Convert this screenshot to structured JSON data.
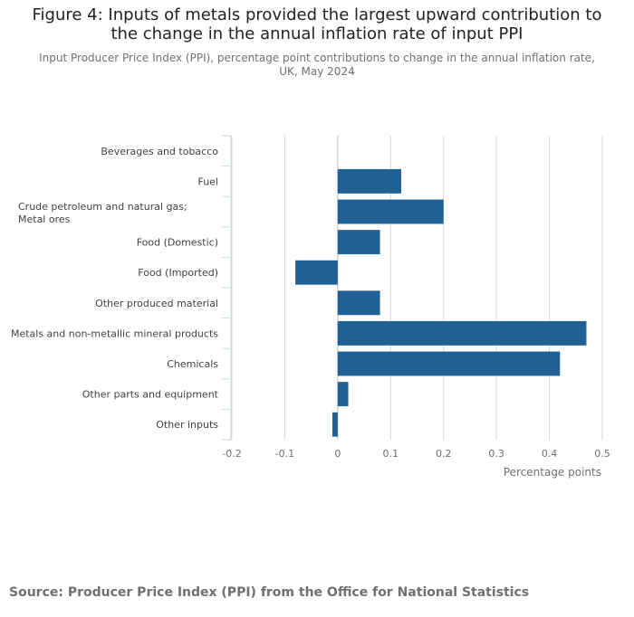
{
  "title": "Figure 4: Inputs of metals provided the largest upward contribution to the change in the annual inflation rate of input PPI",
  "subtitle": "Input Producer Price Index (PPI), percentage point contributions to change in the annual inflation rate, UK, May 2024",
  "source": "Source: Producer Price Index (PPI) from the Office for National Statistics",
  "colors": {
    "bar": "#206095",
    "grid": "#d9d9d9",
    "axis": "#ccd6e8"
  },
  "chart_data": {
    "type": "bar",
    "orientation": "horizontal",
    "categories": [
      "Beverages and tobacco",
      "Fuel",
      "Crude petroleum and natural gas; Metal ores",
      "Food (Domestic)",
      "Food (Imported)",
      "Other produced material",
      "Metals and non-metallic mineral products",
      "Chemicals",
      "Other parts and equipment",
      "Other inputs"
    ],
    "values": [
      0,
      0.12,
      0.2,
      0.08,
      -0.08,
      0.08,
      0.47,
      0.42,
      0.02,
      -0.01
    ],
    "xlabel": "Percentage points",
    "ylabel": "",
    "xlim": [
      -0.2,
      0.5
    ],
    "ticks": [
      -0.2,
      -0.1,
      0,
      0.1,
      0.2,
      0.3,
      0.4,
      0.5
    ],
    "tick_labels": [
      "-0.2",
      "-0.1",
      "0",
      "0.1",
      "0.2",
      "0.3",
      "0.4",
      "0.5"
    ],
    "grid": true,
    "legend": "none"
  }
}
